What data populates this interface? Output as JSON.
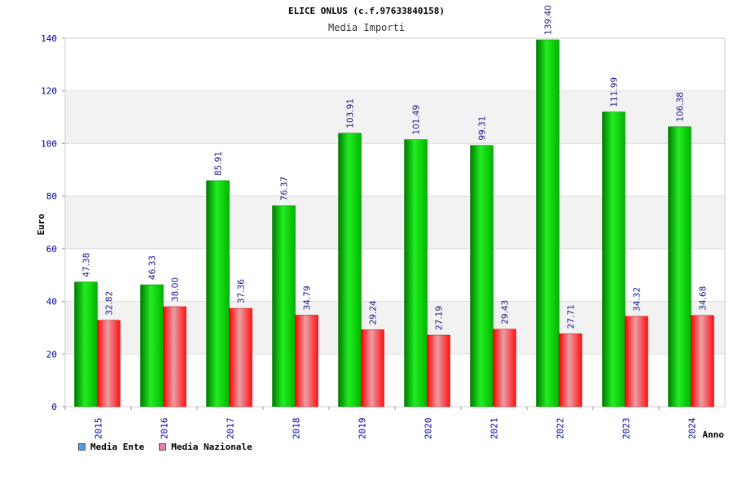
{
  "chart_data": {
    "type": "bar",
    "title": "ELICE ONLUS (c.f.97633840158)",
    "subtitle": "Media Importi",
    "xlabel": "Anno",
    "ylabel": "Euro",
    "ylim": [
      0,
      140
    ],
    "yticks": [
      0,
      20,
      40,
      60,
      80,
      100,
      120,
      140
    ],
    "categories": [
      "2015",
      "2016",
      "2017",
      "2018",
      "2019",
      "2020",
      "2021",
      "2022",
      "2023",
      "2024"
    ],
    "series": [
      {
        "name": "Media Ente",
        "values": [
          47.38,
          46.33,
          85.91,
          76.37,
          103.91,
          101.49,
          99.31,
          139.4,
          111.99,
          106.38
        ],
        "labels": [
          "47.38",
          "46.33",
          "85.91",
          "76.37",
          "103.91",
          "101.49",
          "99.31",
          "139.40",
          "111.99",
          "106.38"
        ]
      },
      {
        "name": "Media Nazionale",
        "values": [
          32.82,
          38.0,
          37.36,
          34.79,
          29.24,
          27.19,
          29.43,
          27.71,
          34.32,
          34.68
        ],
        "labels": [
          "32.82",
          "38.00",
          "37.36",
          "34.79",
          "29.24",
          "27.19",
          "29.43",
          "27.71",
          "34.32",
          "34.68"
        ]
      }
    ],
    "grid": true,
    "legend_position": "bottom-left"
  },
  "legend": [
    {
      "label": "Media Ente",
      "color": "#4f9fe8"
    },
    {
      "label": "Media Nazionale",
      "color": "#e87fb0"
    }
  ],
  "colors": {
    "ente_dark": "#007a00",
    "ente_light": "#22ee22",
    "naz_dark": "#ff0000",
    "naz_light": "#e8a0a8",
    "tick_text": "#0000aa",
    "band": "#f2f2f2",
    "grid": "#dddddd"
  }
}
